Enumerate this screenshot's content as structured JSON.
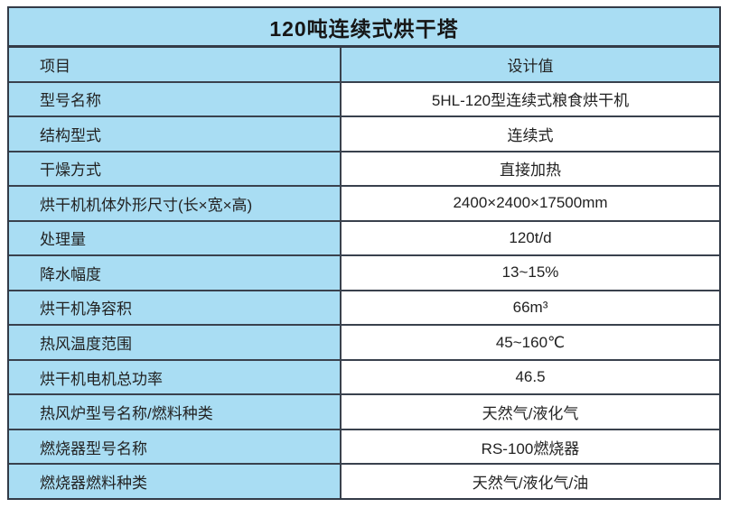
{
  "title": "120吨连续式烘干塔",
  "header": {
    "item_label": "项目",
    "value_label": "设计值"
  },
  "rows": [
    {
      "label": "型号名称",
      "value": "5HL-120型连续式粮食烘干机"
    },
    {
      "label": "结构型式",
      "value": "连续式"
    },
    {
      "label": "干燥方式",
      "value": "直接加热"
    },
    {
      "label": "烘干机机体外形尺寸(长×宽×高)",
      "value": "2400×2400×17500mm"
    },
    {
      "label": "处理量",
      "value": "120t/d"
    },
    {
      "label": "降水幅度",
      "value": "13~15%"
    },
    {
      "label": "烘干机净容积",
      "value": "66m³"
    },
    {
      "label": "热风温度范围",
      "value": "45~160℃"
    },
    {
      "label": "烘干机电机总功率",
      "value": "46.5"
    },
    {
      "label": "热风炉型号名称/燃料种类",
      "value": "天然气/液化气"
    },
    {
      "label": "燃烧器型号名称",
      "value": "RS-100燃烧器"
    },
    {
      "label": "燃烧器燃料种类",
      "value": "天然气/液化气/油"
    }
  ],
  "colors": {
    "cell_blue": "#a9ddf3",
    "border_dark": "#39414d",
    "text": "#222222",
    "value_bg": "#ffffff"
  }
}
